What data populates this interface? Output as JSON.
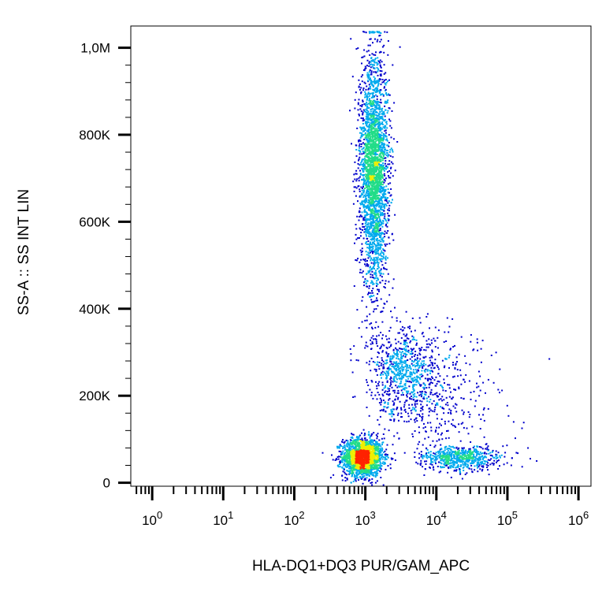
{
  "chart_data": {
    "type": "scatter",
    "title": "",
    "xlabel": "HLA-DQ1+DQ3 PUR/GAM_APC",
    "ylabel": "SS-A :: SS INT LIN",
    "x_scale": "log",
    "xlim": [
      0.5,
      1500000
    ],
    "ylim": [
      -8000,
      1050000
    ],
    "x_ticks": [
      {
        "base": "10",
        "exp": "0",
        "value": 1
      },
      {
        "base": "10",
        "exp": "1",
        "value": 10
      },
      {
        "base": "10",
        "exp": "2",
        "value": 100
      },
      {
        "base": "10",
        "exp": "3",
        "value": 1000
      },
      {
        "base": "10",
        "exp": "4",
        "value": 10000
      },
      {
        "base": "10",
        "exp": "5",
        "value": 100000
      },
      {
        "base": "10",
        "exp": "6",
        "value": 1000000
      }
    ],
    "y_ticks": [
      {
        "label": "0",
        "value": 0
      },
      {
        "label": "200K",
        "value": 200000
      },
      {
        "label": "400K",
        "value": 400000
      },
      {
        "label": "600K",
        "value": 600000
      },
      {
        "label": "800K",
        "value": 800000
      },
      {
        "label": "1,0M",
        "value": 1000000
      }
    ],
    "grid": false,
    "density_colormap": [
      "#0000cc",
      "#00aaee",
      "#22dd88",
      "#eeee00",
      "#ff2200"
    ],
    "populations": [
      {
        "x_center": 900,
        "x_spread_decades": 0.14,
        "y_center": 60000,
        "y_spread": 22000,
        "count": 1900
      },
      {
        "x_center": 1300,
        "x_spread_decades": 0.1,
        "y_center": 720000,
        "y_spread": 130000,
        "count": 2900
      },
      {
        "x_center": 3500,
        "x_spread_decades": 0.25,
        "y_center": 250000,
        "y_spread": 55000,
        "count": 800
      },
      {
        "x_center": 22000,
        "x_spread_decades": 0.28,
        "y_center": 60000,
        "y_spread": 15000,
        "count": 650
      },
      {
        "x_center": 15000,
        "x_spread_decades": 0.4,
        "y_center": 200000,
        "y_spread": 70000,
        "count": 280
      }
    ]
  }
}
